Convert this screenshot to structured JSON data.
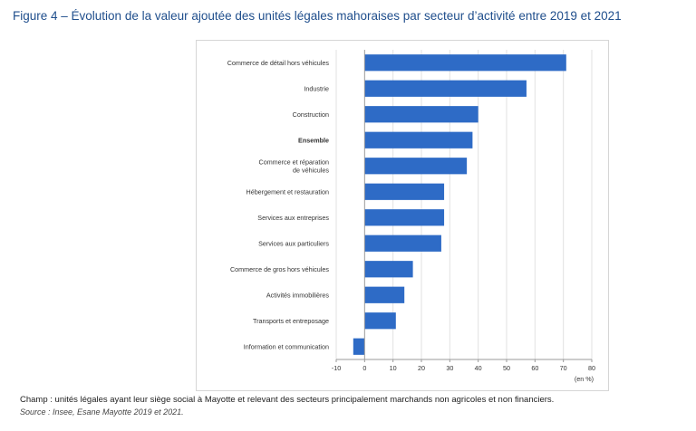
{
  "figure_title": "Figure 4 – Évolution de la valeur ajoutée des unités légales mahoraises par secteur d’activité entre 2019 et 2021",
  "footnote": "Champ : unités légales ayant leur siège social à Mayotte et relevant des secteurs principalement marchands non agricoles et non financiers.",
  "source": "Source : Insee, Esane Mayotte 2019 et 2021.",
  "chart_data": {
    "type": "bar",
    "orientation": "horizontal",
    "categories": [
      "Commerce de détail hors véhicules",
      "Industrie",
      "Construction",
      "Ensemble",
      "Commerce et réparation\nde véhicules",
      "Hébergement et restauration",
      "Services aux entreprises",
      "Services aux particuliers",
      "Commerce de gros hors véhicules",
      "Activités immobilières",
      "Transports et entreposage",
      "Information et communication"
    ],
    "values": [
      71,
      57,
      40,
      38,
      36,
      28,
      28,
      27,
      17,
      14,
      11,
      -4
    ],
    "highlight_category": "Ensemble",
    "xlim": [
      -10,
      80
    ],
    "xticks": [
      -10,
      0,
      10,
      20,
      30,
      40,
      50,
      60,
      70,
      80
    ],
    "unit_label": "(en %)",
    "grid": "vertical",
    "bar_color": "#2e6bc6",
    "grid_color": "#e2e2e2",
    "axis_color": "#9a9a9a"
  }
}
